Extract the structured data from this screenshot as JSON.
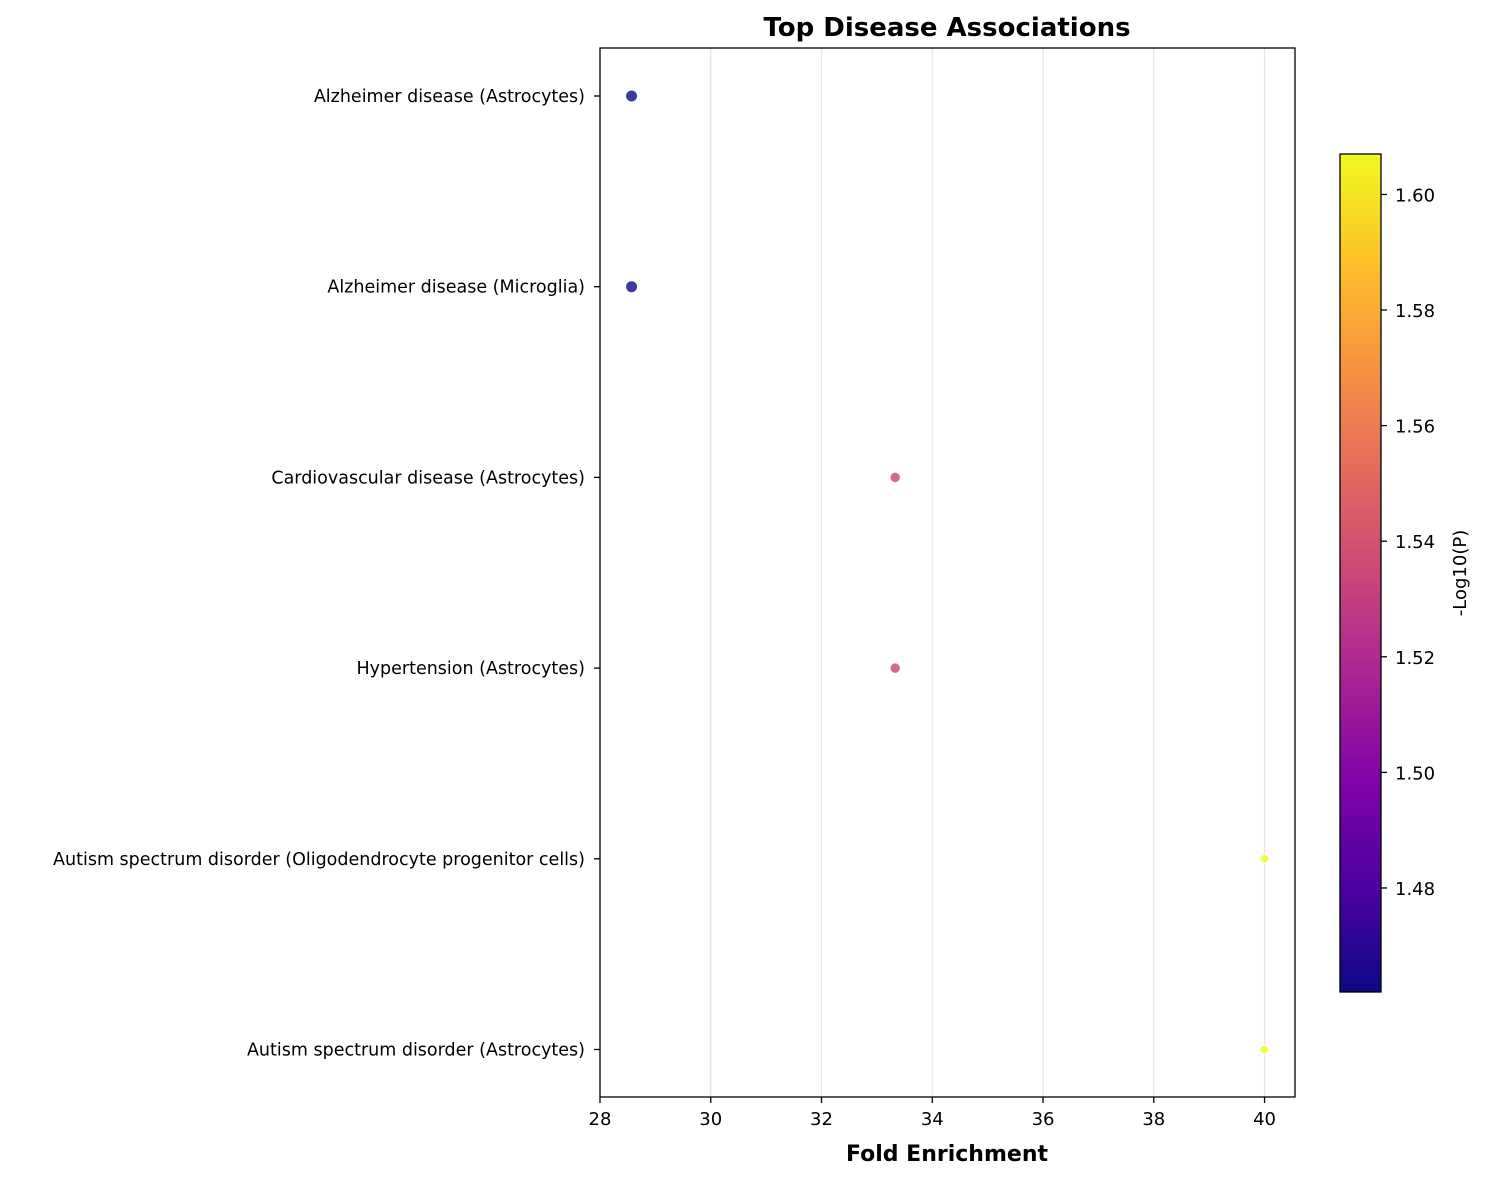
{
  "chart_data": {
    "type": "scatter",
    "title": "Top Disease Associations",
    "xlabel": "Fold Enrichment",
    "ylabel": "",
    "categories": [
      "Alzheimer disease (Astrocytes)",
      "Alzheimer disease (Microglia)",
      "Cardiovascular disease (Astrocytes)",
      "Hypertension (Astrocytes)",
      "Autism spectrum disorder (Oligodendrocyte progenitor cells)",
      "Autism spectrum disorder (Astrocytes)"
    ],
    "x": [
      28.57,
      28.57,
      33.33,
      33.33,
      40.0,
      40.0
    ],
    "color_values": [
      1.462,
      1.462,
      1.532,
      1.532,
      1.607,
      1.607
    ],
    "xlim": [
      28,
      40.55
    ],
    "xticks": [
      "28",
      "30",
      "32",
      "34",
      "36",
      "38",
      "40"
    ],
    "grid": "vertical",
    "colorbar": {
      "label": "-Log10(P)",
      "range": [
        1.462,
        1.607
      ],
      "ticks": [
        "1.48",
        "1.50",
        "1.52",
        "1.54",
        "1.56",
        "1.58",
        "1.60"
      ],
      "colormap": "plasma"
    }
  }
}
